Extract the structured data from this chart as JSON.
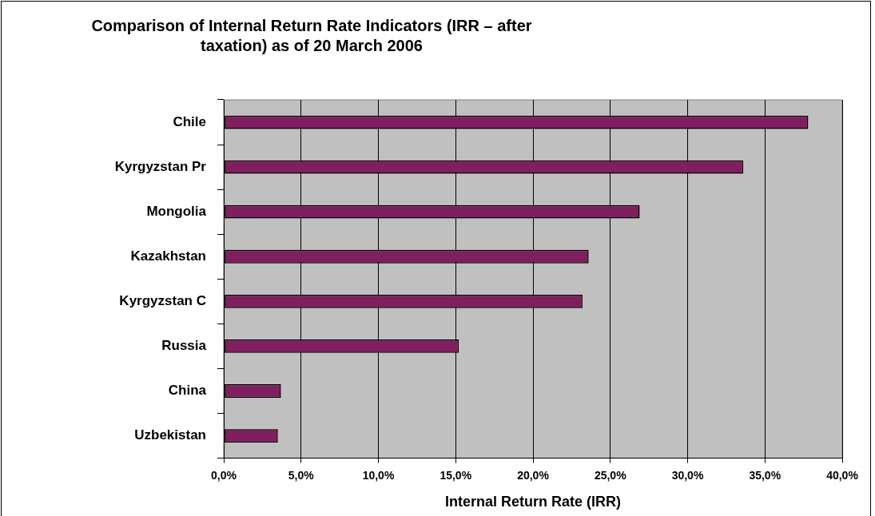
{
  "chart_data": {
    "type": "bar",
    "orientation": "horizontal",
    "title": "Comparison of Internal Return Rate Indicators (IRR – after taxation) as of 20 March 2006",
    "xlabel": "Internal Return Rate (IRR)",
    "categories": [
      "Chile",
      "Kyrgyzstan Pr",
      "Mongolia",
      "Kazakhstan",
      "Kyrgyzstan C",
      "Russia",
      "China",
      "Uzbekistan"
    ],
    "values": [
      37.8,
      33.6,
      26.9,
      23.6,
      23.2,
      15.2,
      3.7,
      3.5
    ],
    "color": "#7f1f5f",
    "xlim": [
      0,
      40
    ],
    "xticks": [
      {
        "value": 0,
        "label": "0,0%"
      },
      {
        "value": 5,
        "label": "5,0%"
      },
      {
        "value": 10,
        "label": "10,0%"
      },
      {
        "value": 15,
        "label": "15,0%"
      },
      {
        "value": 20,
        "label": "20,0%"
      },
      {
        "value": 25,
        "label": "25,0%"
      },
      {
        "value": 30,
        "label": "30,0%"
      },
      {
        "value": 35,
        "label": "35,0%"
      },
      {
        "value": 40,
        "label": "40,0%"
      }
    ],
    "grid": "x",
    "legend": false
  }
}
